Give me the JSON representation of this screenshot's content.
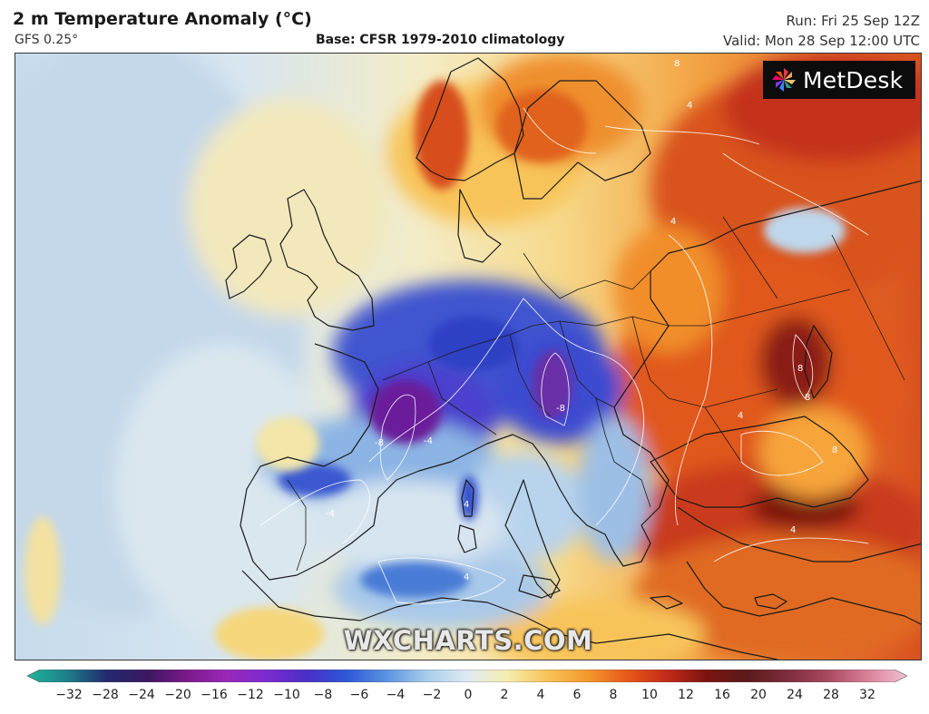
{
  "header": {
    "title": "2 m Temperature Anomaly (°C)",
    "model": "GFS 0.25°",
    "base": "Base: CFSR 1979-2010 climatology",
    "run": "Run: Fri 25 Sep 12Z",
    "valid": "Valid: Mon 28 Sep 12:00 UTC"
  },
  "logo": {
    "text": "MetDesk",
    "icon": "pinwheel-logo-icon"
  },
  "watermark": "WXCHARTS.COM",
  "colorbar": {
    "ticks": [
      "−32",
      "−28",
      "−24",
      "−20",
      "−16",
      "−12",
      "−10",
      "−8",
      "−6",
      "−4",
      "−2",
      "0",
      "2",
      "4",
      "6",
      "8",
      "10",
      "12",
      "16",
      "20",
      "24",
      "28",
      "32"
    ],
    "colors": [
      "#1fb59a",
      "#1d7f8a",
      "#232a6e",
      "#3a1760",
      "#7a1a8a",
      "#9a28b8",
      "#7b2bd0",
      "#4a2fc6",
      "#2d58d8",
      "#5c94e0",
      "#a8cdea",
      "#dfeaf3",
      "#f6eeb0",
      "#f8c45a",
      "#f49a2c",
      "#e8591a",
      "#c42a18",
      "#7a1410",
      "#5a1a1a",
      "#7d2c3c",
      "#a8485e",
      "#d87f98",
      "#f2c3d3"
    ]
  },
  "map": {
    "contour_labels": [
      "-8",
      "-8",
      "-4",
      "4",
      "4",
      "4",
      "8",
      "8",
      "8",
      "4",
      "4",
      "-4",
      "4",
      "8"
    ],
    "legend_colors": {
      "ocean_cool": "#c9dcec",
      "cold_anomaly": "#3a47c8",
      "very_cold": "#6b1c9a",
      "neutral": "#f3ecc4",
      "warm": "#f39a3a",
      "hot": "#d4421c",
      "very_hot": "#7a1410"
    }
  }
}
